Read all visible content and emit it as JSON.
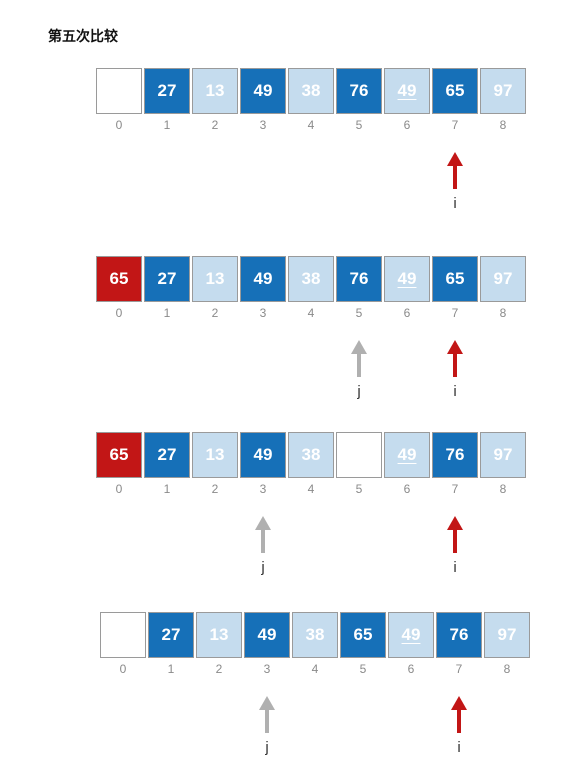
{
  "title": "第五次比较",
  "rows": [
    {
      "cells": [
        {
          "value": "",
          "style": "empty"
        },
        {
          "value": "27",
          "style": "dark"
        },
        {
          "value": "13",
          "style": "light"
        },
        {
          "value": "49",
          "style": "dark"
        },
        {
          "value": "38",
          "style": "light"
        },
        {
          "value": "76",
          "style": "dark"
        },
        {
          "value": "49",
          "style": "light",
          "underline": true
        },
        {
          "value": "65",
          "style": "dark"
        },
        {
          "value": "97",
          "style": "light"
        }
      ],
      "indices": [
        "0",
        "1",
        "2",
        "3",
        "4",
        "5",
        "6",
        "7",
        "8"
      ],
      "pointers": [
        {
          "label": "i",
          "index": 7,
          "color": "red"
        }
      ]
    },
    {
      "cells": [
        {
          "value": "65",
          "style": "red"
        },
        {
          "value": "27",
          "style": "dark"
        },
        {
          "value": "13",
          "style": "light"
        },
        {
          "value": "49",
          "style": "dark"
        },
        {
          "value": "38",
          "style": "light"
        },
        {
          "value": "76",
          "style": "dark"
        },
        {
          "value": "49",
          "style": "light",
          "underline": true
        },
        {
          "value": "65",
          "style": "dark"
        },
        {
          "value": "97",
          "style": "light"
        }
      ],
      "indices": [
        "0",
        "1",
        "2",
        "3",
        "4",
        "5",
        "6",
        "7",
        "8"
      ],
      "pointers": [
        {
          "label": "j",
          "index": 5,
          "color": "gray"
        },
        {
          "label": "i",
          "index": 7,
          "color": "red"
        }
      ]
    },
    {
      "cells": [
        {
          "value": "65",
          "style": "red"
        },
        {
          "value": "27",
          "style": "dark"
        },
        {
          "value": "13",
          "style": "light"
        },
        {
          "value": "49",
          "style": "dark"
        },
        {
          "value": "38",
          "style": "light"
        },
        {
          "value": "",
          "style": "empty"
        },
        {
          "value": "49",
          "style": "light",
          "underline": true
        },
        {
          "value": "76",
          "style": "dark"
        },
        {
          "value": "97",
          "style": "light"
        }
      ],
      "indices": [
        "0",
        "1",
        "2",
        "3",
        "4",
        "5",
        "6",
        "7",
        "8"
      ],
      "pointers": [
        {
          "label": "j",
          "index": 3,
          "color": "gray"
        },
        {
          "label": "i",
          "index": 7,
          "color": "red"
        }
      ]
    },
    {
      "cells": [
        {
          "value": "",
          "style": "empty"
        },
        {
          "value": "27",
          "style": "dark"
        },
        {
          "value": "13",
          "style": "light"
        },
        {
          "value": "49",
          "style": "dark"
        },
        {
          "value": "38",
          "style": "light"
        },
        {
          "value": "65",
          "style": "dark"
        },
        {
          "value": "49",
          "style": "light",
          "underline": true
        },
        {
          "value": "76",
          "style": "dark"
        },
        {
          "value": "97",
          "style": "light"
        }
      ],
      "indices": [
        "0",
        "1",
        "2",
        "3",
        "4",
        "5",
        "6",
        "7",
        "8"
      ],
      "pointers": [
        {
          "label": "j",
          "index": 3,
          "color": "gray"
        },
        {
          "label": "i",
          "index": 7,
          "color": "red"
        }
      ]
    }
  ],
  "colors": {
    "dark": "#1670b8",
    "light": "#c5dcee",
    "red": "#c21616",
    "pointer_red": "#c21616",
    "pointer_gray": "#b0b0b0"
  }
}
